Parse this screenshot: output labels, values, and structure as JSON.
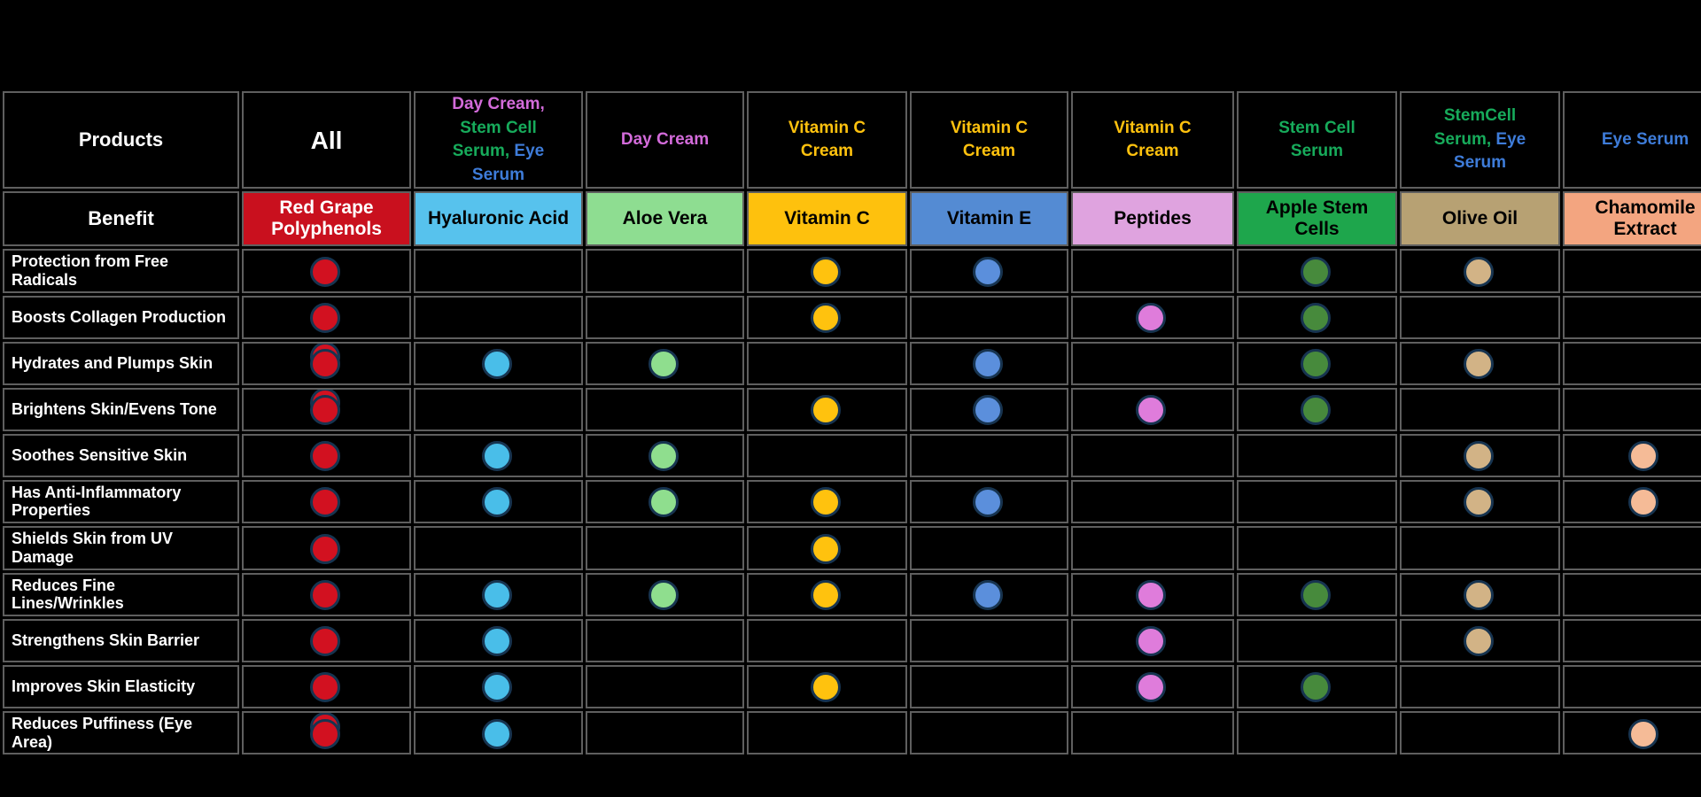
{
  "page": {
    "background": "#000000",
    "grid_line_color": "#5f5f5f",
    "dot_ring_color": "#173450"
  },
  "chart_data": {
    "type": "table",
    "title": "Skincare product ingredient / benefit matrix",
    "corner": {
      "products": "Products",
      "benefit": "Benefit"
    },
    "columns": [
      {
        "products": [
          {
            "text": "All",
            "color": "#FFFFFF"
          }
        ],
        "products_large": true,
        "ingredient": "Red Grape Polyphenols",
        "ingredient_bg": "#C9101E",
        "ingredient_fg": "#FFFFFF",
        "dot": "#D21120"
      },
      {
        "products": [
          {
            "text": "Day Cream,",
            "color": "#D36BDA"
          },
          {
            "text": "Stem Cell Serum,",
            "color": "#17AB5B"
          },
          {
            "text": "Eye Serum",
            "color": "#3E7CD9"
          }
        ],
        "ingredient": "Hyaluronic Acid",
        "ingredient_bg": "#57C2ED",
        "ingredient_fg": "#000000",
        "dot": "#49BEE9"
      },
      {
        "products": [
          {
            "text": "Day Cream",
            "color": "#D36BDA"
          }
        ],
        "ingredient": "Aloe Vera",
        "ingredient_bg": "#8EDD91",
        "ingredient_fg": "#000000",
        "dot": "#8FDE8E"
      },
      {
        "products": [
          {
            "text": "Vitamin C Cream",
            "color": "#FFC20E"
          }
        ],
        "ingredient": "Vitamin C",
        "ingredient_bg": "#FEC10D",
        "ingredient_fg": "#000000",
        "dot": "#FFC20E"
      },
      {
        "products": [
          {
            "text": "Vitamin C Cream",
            "color": "#FFC20E"
          }
        ],
        "ingredient": "Vitamin E",
        "ingredient_bg": "#548BD3",
        "ingredient_fg": "#000000",
        "dot": "#5B8FDC"
      },
      {
        "products": [
          {
            "text": "Vitamin C Cream",
            "color": "#FFC20E"
          }
        ],
        "ingredient": "Peptides",
        "ingredient_bg": "#DFA3DF",
        "ingredient_fg": "#000000",
        "dot": "#DF7CDB"
      },
      {
        "products": [
          {
            "text": "Stem Cell Serum",
            "color": "#17AB5B"
          }
        ],
        "ingredient": "Apple Stem Cells",
        "ingredient_bg": "#1EA64C",
        "ingredient_fg": "#000000",
        "dot": "#478A3C"
      },
      {
        "products": [
          {
            "text": "StemCell Serum,",
            "color": "#17AB5B"
          },
          {
            "text": "Eye Serum",
            "color": "#3E7CD9"
          }
        ],
        "ingredient": "Olive Oil",
        "ingredient_bg": "#B7A173",
        "ingredient_fg": "#000000",
        "dot": "#D2B386"
      },
      {
        "products": [
          {
            "text": "Eye Serum",
            "color": "#3E7CD9"
          }
        ],
        "ingredient": "Chamomile Extract",
        "ingredient_bg": "#F3A580",
        "ingredient_fg": "#000000",
        "dot": "#F5BB97"
      }
    ],
    "benefits": [
      "Protection from Free Radicals",
      "Boosts Collagen Production",
      "Hydrates and Plumps Skin",
      "Brightens Skin/Evens Tone",
      "Soothes Sensitive Skin",
      "Has Anti-Inflammatory Properties",
      "Shields Skin from UV Damage",
      "Reduces Fine Lines/Wrinkles",
      "Strengthens Skin Barrier",
      "Improves Skin Elasticity",
      "Reduces Puffiness (Eye Area)"
    ],
    "matrix_encoding": {
      "0": "no dot",
      "1": "dot",
      "2": "double stacked dot"
    },
    "matrix": [
      [
        1,
        0,
        0,
        1,
        1,
        0,
        1,
        1,
        0
      ],
      [
        1,
        0,
        0,
        1,
        0,
        1,
        1,
        0,
        0
      ],
      [
        2,
        1,
        1,
        0,
        1,
        0,
        1,
        1,
        0
      ],
      [
        2,
        0,
        0,
        1,
        1,
        1,
        1,
        0,
        0
      ],
      [
        1,
        1,
        1,
        0,
        0,
        0,
        0,
        1,
        1
      ],
      [
        1,
        1,
        1,
        1,
        1,
        0,
        0,
        1,
        1
      ],
      [
        1,
        0,
        0,
        1,
        0,
        0,
        0,
        0,
        0
      ],
      [
        1,
        1,
        1,
        1,
        1,
        1,
        1,
        1,
        0
      ],
      [
        1,
        1,
        0,
        0,
        0,
        1,
        0,
        1,
        0
      ],
      [
        1,
        1,
        0,
        1,
        0,
        1,
        1,
        0,
        0
      ],
      [
        2,
        1,
        0,
        0,
        0,
        0,
        0,
        0,
        1
      ]
    ]
  }
}
